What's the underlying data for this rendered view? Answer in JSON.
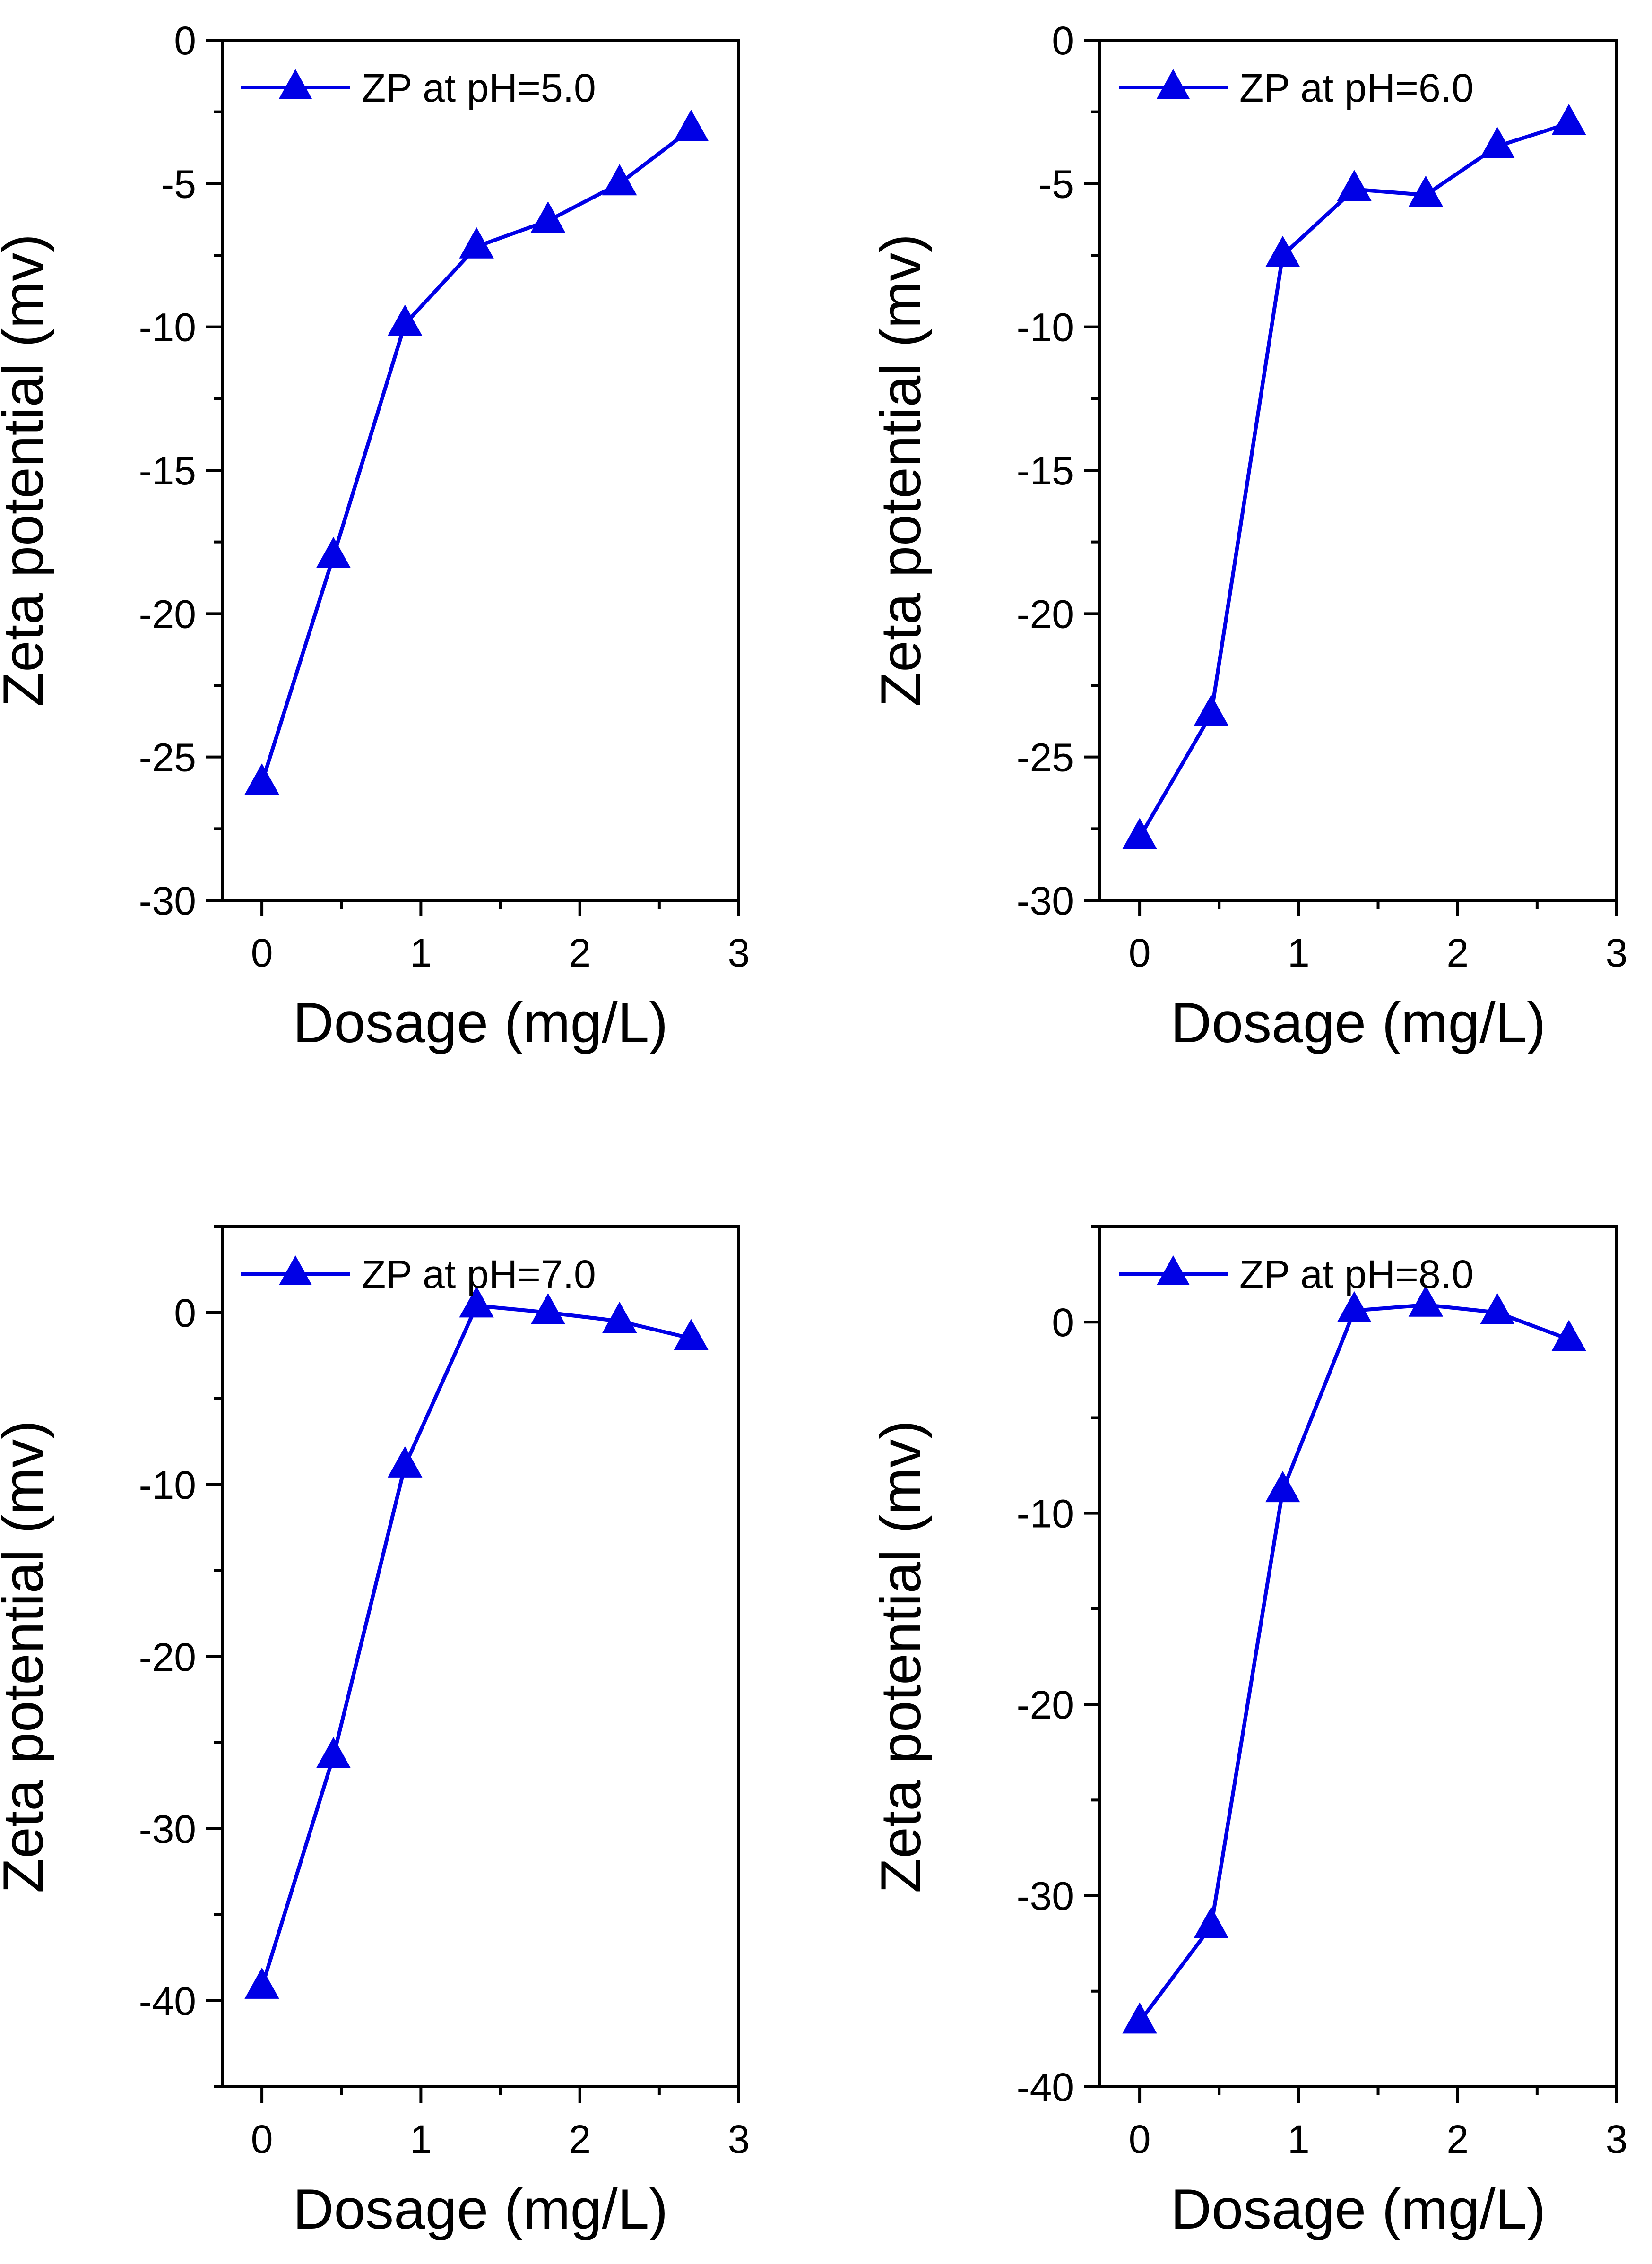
{
  "colors": {
    "series": "#0000e6",
    "axis": "#000000",
    "background": "#ffffff"
  },
  "marker": "triangle-up",
  "chart_data": [
    {
      "type": "line",
      "title": "",
      "xlabel": "Dosage (mg/L)",
      "ylabel": "Zeta potential (mv)",
      "xlim": [
        -0.25,
        3
      ],
      "ylim": [
        -30,
        0
      ],
      "xticks": [
        0,
        1,
        2,
        3
      ],
      "xtick_labels": [
        "0",
        "1",
        "2",
        "3"
      ],
      "yticks": [
        -30,
        -25,
        -20,
        -15,
        -10,
        -5,
        0
      ],
      "ytick_labels": [
        "-30",
        "-25",
        "-20",
        "-15",
        "-10",
        "-5",
        "0"
      ],
      "legend": "top-left",
      "series": [
        {
          "name": "ZP at pH=5.0",
          "x": [
            0,
            0.45,
            0.9,
            1.35,
            1.8,
            2.25,
            2.7
          ],
          "values": [
            -25.9,
            -18.0,
            -9.9,
            -7.2,
            -6.3,
            -5.0,
            -3.1
          ]
        }
      ]
    },
    {
      "type": "line",
      "title": "",
      "xlabel": "Dosage (mg/L)",
      "ylabel": "Zeta potential (mv)",
      "xlim": [
        -0.25,
        3
      ],
      "ylim": [
        -30,
        0
      ],
      "xticks": [
        0,
        1,
        2,
        3
      ],
      "xtick_labels": [
        "0",
        "1",
        "2",
        "3"
      ],
      "yticks": [
        -30,
        -25,
        -20,
        -15,
        -10,
        -5,
        0
      ],
      "ytick_labels": [
        "-30",
        "-25",
        "-20",
        "-15",
        "-10",
        "-5",
        "0"
      ],
      "legend": "top-left",
      "series": [
        {
          "name": "ZP at pH=6.0",
          "x": [
            0,
            0.45,
            0.9,
            1.35,
            1.8,
            2.25,
            2.7
          ],
          "values": [
            -27.8,
            -23.5,
            -7.5,
            -5.2,
            -5.4,
            -3.7,
            -2.9
          ]
        }
      ]
    },
    {
      "type": "line",
      "title": "",
      "xlabel": "Dosage (mg/L)",
      "ylabel": "Zeta potential (mv)",
      "xlim": [
        -0.25,
        3
      ],
      "ylim": [
        -45,
        5
      ],
      "xticks": [
        0,
        1,
        2,
        3
      ],
      "xtick_labels": [
        "0",
        "1",
        "2",
        "3"
      ],
      "yticks": [
        -40,
        -30,
        -20,
        -10,
        0
      ],
      "ytick_labels": [
        "-40",
        "-30",
        "-20",
        "-10",
        "0"
      ],
      "legend": "top-left",
      "series": [
        {
          "name": "ZP at pH=7.0",
          "x": [
            0,
            0.45,
            0.9,
            1.35,
            1.8,
            2.25,
            2.7
          ],
          "values": [
            -39.2,
            -25.8,
            -8.9,
            0.4,
            0.0,
            -0.5,
            -1.5
          ]
        }
      ]
    },
    {
      "type": "line",
      "title": "",
      "xlabel": "Dosage (mg/L)",
      "ylabel": "Zeta potential (mv)",
      "xlim": [
        -0.25,
        3
      ],
      "ylim": [
        -40,
        5
      ],
      "xticks": [
        0,
        1,
        2,
        3
      ],
      "xtick_labels": [
        "0",
        "1",
        "2",
        "3"
      ],
      "yticks": [
        -40,
        -30,
        -20,
        -10,
        0
      ],
      "ytick_labels": [
        "-40",
        "-30",
        "-20",
        "-10",
        "0"
      ],
      "legend": "top-left",
      "series": [
        {
          "name": "ZP at pH=8.0",
          "x": [
            0,
            0.45,
            0.9,
            1.35,
            1.8,
            2.25,
            2.7
          ],
          "values": [
            -36.6,
            -31.6,
            -8.8,
            0.6,
            0.9,
            0.5,
            -0.9
          ]
        }
      ]
    }
  ]
}
